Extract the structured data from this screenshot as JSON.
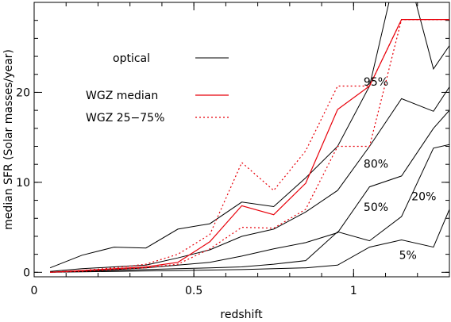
{
  "chart_data": {
    "type": "line",
    "xlabel": "redshift",
    "ylabel": "median SFR (Solar masses/year)",
    "xlim": [
      0,
      1.3
    ],
    "ylim": [
      -0.5,
      30
    ],
    "xticks": [
      {
        "value": 0,
        "label": "0"
      },
      {
        "value": 0.5,
        "label": "0.5"
      },
      {
        "value": 1,
        "label": "1"
      }
    ],
    "yticks": [
      {
        "value": 0,
        "label": "0"
      },
      {
        "value": 10,
        "label": "10"
      },
      {
        "value": 20,
        "label": "20"
      }
    ],
    "x_minor_step": 0.1,
    "y_minor_step": 2,
    "x": [
      0.05,
      0.15,
      0.25,
      0.35,
      0.45,
      0.55,
      0.65,
      0.75,
      0.85,
      0.95,
      1.05,
      1.15,
      1.25,
      1.3
    ],
    "series": [
      {
        "label": "5%",
        "style": "optical",
        "values": [
          0.0,
          0.05,
          0.1,
          0.15,
          0.2,
          0.25,
          0.3,
          0.4,
          0.5,
          0.8,
          2.8,
          3.6,
          2.8,
          7.0
        ]
      },
      {
        "label": "20%",
        "style": "optical",
        "values": [
          0.0,
          0.1,
          0.2,
          0.3,
          0.4,
          0.5,
          0.6,
          0.9,
          1.3,
          4.5,
          3.5,
          6.2,
          13.8,
          14.2
        ]
      },
      {
        "label": "50%",
        "style": "optical",
        "values": [
          0.0,
          0.2,
          0.3,
          0.5,
          0.8,
          1.1,
          1.8,
          2.6,
          3.3,
          4.4,
          9.5,
          10.7,
          16.0,
          18.0
        ]
      },
      {
        "label": "80%",
        "style": "optical",
        "values": [
          0.1,
          0.4,
          0.6,
          0.8,
          1.6,
          2.5,
          4.0,
          4.8,
          6.7,
          9.1,
          14.0,
          19.3,
          17.9,
          20.6
        ]
      },
      {
        "label": "95%",
        "style": "optical",
        "values": [
          0.5,
          1.9,
          2.8,
          2.7,
          4.8,
          5.4,
          7.8,
          7.3,
          10.5,
          14.0,
          20.7,
          36.0,
          22.6,
          25.2
        ]
      },
      {
        "label": "",
        "style": "median",
        "values": [
          0.0,
          0.2,
          0.4,
          0.6,
          1.1,
          3.4,
          7.4,
          6.4,
          9.9,
          18.1,
          20.7,
          28.1,
          28.1,
          28.1
        ]
      },
      {
        "label": "",
        "style": "quartile",
        "values": [
          0.0,
          0.2,
          0.5,
          0.9,
          2.0,
          4.2,
          12.2,
          9.1,
          13.5,
          20.7,
          20.7,
          28.1,
          28.1,
          28.1
        ]
      },
      {
        "label": "",
        "style": "quartile",
        "values": [
          0.0,
          0.1,
          0.3,
          0.5,
          0.9,
          2.6,
          5.0,
          4.9,
          7.0,
          14.0,
          14.0,
          28.1,
          28.1,
          28.1
        ]
      }
    ],
    "legend": {
      "placement": "upper-left",
      "entries": [
        {
          "label": "optical",
          "style": "optical"
        },
        {
          "label": "WGZ median",
          "style": "median"
        },
        {
          "label": "WGZ 25−75%",
          "style": "quartile"
        }
      ]
    },
    "colors": {
      "optical": "#000000",
      "median": "#e8000a",
      "quartile": "#e8000a"
    },
    "grid": false
  }
}
